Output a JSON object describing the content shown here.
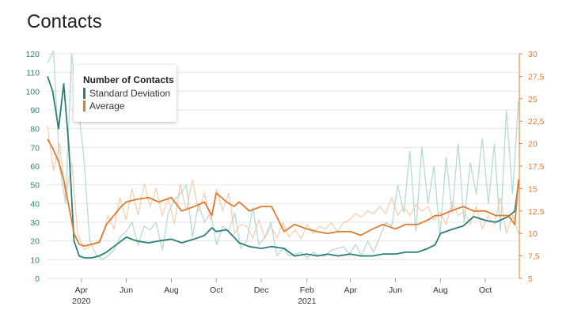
{
  "title": "Contacts",
  "colors": {
    "std": "#2a7f79",
    "std_light": "#a9d3d1",
    "avg": "#e07b2f",
    "avg_light": "#f3c7a5",
    "left_axis": "#2a7f79",
    "right_axis": "#e07b2f",
    "grid": "#e4e4e4",
    "x_text": "#333333"
  },
  "legend": {
    "title": "Number of Contacts",
    "items": [
      "Standard Deviation",
      "Average"
    ]
  },
  "chart_data": {
    "type": "line",
    "title": "Contacts",
    "xlabel": "",
    "x_tick_labels": [
      "Apr",
      "Jun",
      "Aug",
      "Oct",
      "Dec",
      "Feb",
      "Apr",
      "Jun",
      "Aug",
      "Oct"
    ],
    "x_year_labels": [
      "2020",
      "2021"
    ],
    "x_range": [
      "2020-02-15",
      "2021-11-15"
    ],
    "y_left_ticks": [
      "0",
      "10",
      "20",
      "30",
      "40",
      "50",
      "60",
      "70",
      "80",
      "90",
      "100",
      "110",
      "120"
    ],
    "y_right_ticks": [
      "5",
      "7,5",
      "10",
      "12,5",
      "15",
      "17,5",
      "20",
      "22,5",
      "25",
      "27,5",
      "30"
    ],
    "ylim_left": [
      0,
      120
    ],
    "ylim_right": [
      5,
      30
    ],
    "grid": "horizontal",
    "legend_position": "top-left",
    "series": [
      {
        "name": "Standard Deviation",
        "axis": "left",
        "x": [
          "2020-02-15",
          "2020-02-22",
          "2020-03-01",
          "2020-03-08",
          "2020-03-15",
          "2020-03-22",
          "2020-03-29",
          "2020-04-05",
          "2020-04-15",
          "2020-04-25",
          "2020-05-05",
          "2020-05-15",
          "2020-05-25",
          "2020-06-01",
          "2020-06-15",
          "2020-07-01",
          "2020-07-15",
          "2020-08-01",
          "2020-08-15",
          "2020-09-01",
          "2020-09-15",
          "2020-09-25",
          "2020-10-01",
          "2020-10-15",
          "2020-10-25",
          "2020-11-01",
          "2020-11-15",
          "2020-12-01",
          "2020-12-15",
          "2021-01-01",
          "2021-01-15",
          "2021-02-01",
          "2021-02-15",
          "2021-03-01",
          "2021-03-15",
          "2021-04-01",
          "2021-04-15",
          "2021-05-01",
          "2021-05-15",
          "2021-06-01",
          "2021-06-15",
          "2021-07-01",
          "2021-07-15",
          "2021-07-25",
          "2021-08-01",
          "2021-08-15",
          "2021-09-01",
          "2021-09-15",
          "2021-10-01",
          "2021-10-15",
          "2021-11-01",
          "2021-11-10",
          "2021-11-15"
        ],
        "values": [
          108,
          100,
          80,
          104,
          70,
          20,
          12,
          11,
          11,
          12,
          14,
          17,
          20,
          22,
          20,
          19,
          20,
          21,
          19,
          21,
          23,
          27,
          25,
          26,
          22,
          19,
          17,
          16,
          17,
          16,
          12,
          13,
          12,
          13,
          12,
          13,
          12,
          12,
          13,
          13,
          14,
          14,
          16,
          18,
          24,
          26,
          28,
          33,
          31,
          30,
          33,
          36,
          51
        ]
      },
      {
        "name": "Average",
        "axis": "right",
        "x": [
          "2020-02-15",
          "2020-02-22",
          "2020-03-01",
          "2020-03-08",
          "2020-03-15",
          "2020-03-22",
          "2020-03-29",
          "2020-04-05",
          "2020-04-15",
          "2020-04-25",
          "2020-05-05",
          "2020-05-15",
          "2020-05-25",
          "2020-06-01",
          "2020-06-15",
          "2020-07-01",
          "2020-07-15",
          "2020-08-01",
          "2020-08-15",
          "2020-09-01",
          "2020-09-15",
          "2020-09-25",
          "2020-10-01",
          "2020-10-15",
          "2020-10-25",
          "2020-11-01",
          "2020-11-15",
          "2020-12-01",
          "2020-12-15",
          "2021-01-01",
          "2021-01-15",
          "2021-02-01",
          "2021-02-15",
          "2021-03-01",
          "2021-03-15",
          "2021-04-01",
          "2021-04-15",
          "2021-05-01",
          "2021-05-15",
          "2021-06-01",
          "2021-06-15",
          "2021-07-01",
          "2021-07-15",
          "2021-07-25",
          "2021-08-01",
          "2021-08-15",
          "2021-09-01",
          "2021-09-15",
          "2021-10-01",
          "2021-10-15",
          "2021-11-01",
          "2021-11-10",
          "2021-11-15"
        ],
        "values": [
          20.5,
          19.5,
          18,
          16,
          13,
          10,
          8.8,
          8.6,
          8.8,
          9,
          11,
          12,
          13,
          13.5,
          13.8,
          14,
          13.5,
          14,
          12.5,
          13,
          13.5,
          12,
          14.5,
          13.5,
          13,
          13.5,
          12.5,
          13,
          13,
          10.2,
          11,
          10.5,
          10.2,
          10,
          10.2,
          10.2,
          9.8,
          10.5,
          11,
          10.5,
          11,
          11,
          11.5,
          12,
          12,
          12.5,
          13,
          12.5,
          12.5,
          12,
          12,
          11,
          16
        ]
      }
    ],
    "noisy_series": [
      {
        "name": "Standard Deviation",
        "axis": "left",
        "values": [
          115,
          125,
          60,
          40,
          120,
          95,
          65,
          20,
          13,
          10,
          12,
          15,
          22,
          25,
          30,
          18,
          28,
          26,
          30,
          15,
          35,
          42,
          45,
          50,
          22,
          40,
          30,
          35,
          18,
          28,
          25,
          35,
          16,
          20,
          38,
          18,
          22,
          30,
          12,
          16,
          12,
          13,
          14,
          11,
          14,
          12,
          12,
          15,
          16,
          17,
          13,
          18,
          12,
          20,
          14,
          22,
          30,
          28,
          50,
          35,
          68,
          25,
          70,
          40,
          60,
          22,
          65,
          35,
          72,
          30,
          62,
          45,
          75,
          40,
          72,
          25,
          90,
          45,
          95
        ]
      },
      {
        "name": "Average",
        "axis": "right",
        "values": [
          22,
          17,
          20,
          14,
          18,
          10,
          8.2,
          8.5,
          9,
          9.5,
          12,
          10.5,
          14,
          11.5,
          15,
          12,
          15.5,
          13,
          15,
          12,
          14,
          11,
          15.5,
          12.5,
          16,
          12.5,
          14.5,
          11.5,
          15,
          12.5,
          14.5,
          10,
          11,
          10.8,
          9.5,
          11.5,
          9.5,
          10.8,
          9.5,
          11.2,
          9.6,
          10.4,
          9.4,
          11,
          10,
          10.8,
          10.5,
          11.2,
          10.2,
          11.2,
          11.5,
          12.2,
          11.8,
          12.5,
          12.2,
          13,
          12.2,
          14,
          12,
          13,
          12,
          13.2,
          12.5,
          13,
          11.5,
          12.4,
          11,
          13.5,
          12,
          12.5,
          11,
          13,
          10.5,
          12,
          11,
          14,
          10,
          12,
          10
        ]
      }
    ]
  }
}
